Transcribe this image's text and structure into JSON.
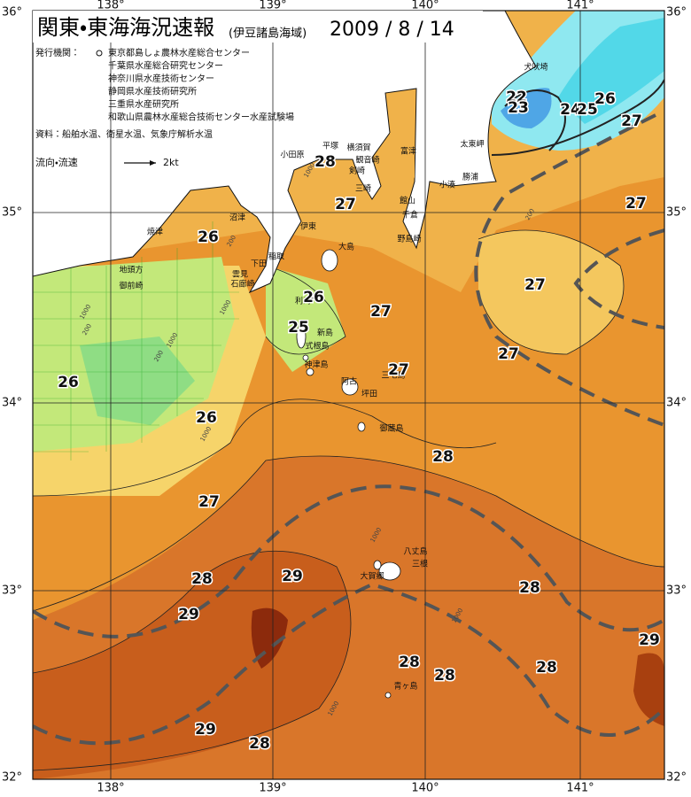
{
  "header": {
    "title": "関東・東海海況速報",
    "subtitle": "(伊豆諸島海域)",
    "date": "2009 / 8 / 14"
  },
  "issuers": {
    "label": "発行機関：",
    "items": [
      "東京都島しょ農林水産総合センター",
      "千葉県水産総合研究センター",
      "神奈川県水産技術センター",
      "静岡県水産技術研究所",
      "三重県水産研究所",
      "和歌山県農林水産総合技術センター水産試験場"
    ]
  },
  "sources": "資料：船舶水温、衛星水温、気象庁解析水温",
  "current_legend": {
    "label": "流向・流速",
    "speed": "2kt"
  },
  "longitude_labels": [
    "138°",
    "139°",
    "140°",
    "141°"
  ],
  "latitude_labels": [
    "36°",
    "35°",
    "34°",
    "33°",
    "32°"
  ],
  "place_names": [
    "犬吠埼",
    "太東岬",
    "勝浦",
    "小湊",
    "富津",
    "館山",
    "千倉",
    "野島崎",
    "横須賀",
    "観音崎",
    "剣崎",
    "三崎",
    "平塚",
    "小田原",
    "伊東",
    "沼津",
    "焼津",
    "稲取",
    "下田",
    "雲見",
    "石廊崎",
    "地頭方",
    "御前崎",
    "大島",
    "利島",
    "新島",
    "式根島",
    "神津島",
    "三宅島",
    "阿古",
    "坪田",
    "御蔵島",
    "八丈島",
    "三根",
    "大賀郷",
    "青ヶ島"
  ],
  "temperature_labels": [
    "26",
    "26",
    "26",
    "26",
    "25",
    "27",
    "28",
    "27",
    "27",
    "27",
    "27",
    "27",
    "27",
    "22",
    "23",
    "24",
    "25",
    "26",
    "27",
    "28",
    "28",
    "29",
    "29",
    "28",
    "28",
    "28",
    "28",
    "29",
    "29",
    "28"
  ],
  "depth_labels": [
    "1000",
    "200",
    "1000",
    "200",
    "1000",
    "200",
    "1000",
    "1000",
    "1000",
    "1000",
    "1000",
    "200"
  ]
}
